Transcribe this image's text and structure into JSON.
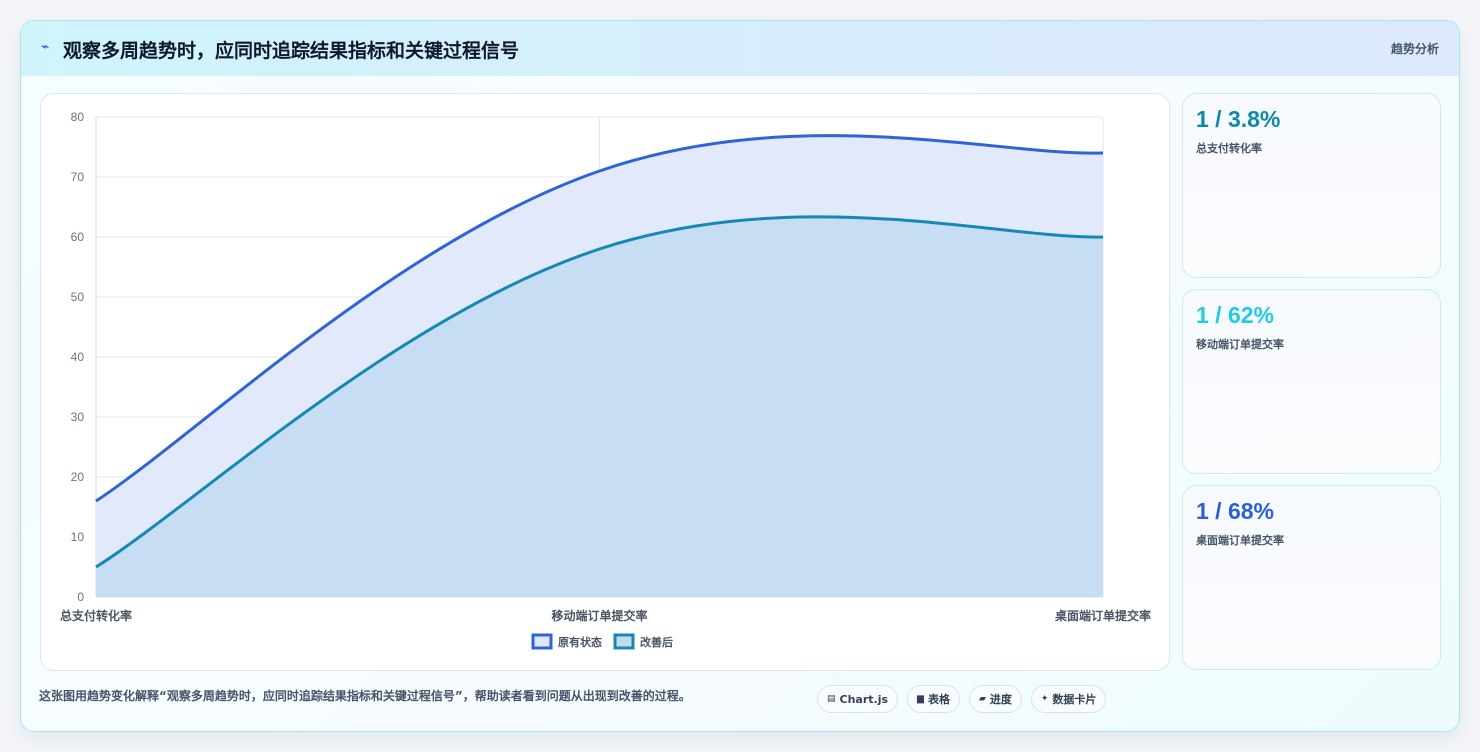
{
  "header": {
    "icon": "trend-line-icon",
    "title": "观察多周趋势时，应同时追踪结果指标和关键过程信号",
    "tag": "趋势分析"
  },
  "chart_data": {
    "type": "area",
    "categories": [
      "总支付转化率",
      "移动端订单提交率",
      "桌面端订单提交率"
    ],
    "series": [
      {
        "name": "原有状态",
        "values": [
          16,
          71,
          74
        ],
        "color": "#2f63d6",
        "fill": "#dfe8fb"
      },
      {
        "name": "改善后",
        "values": [
          5,
          58,
          60
        ],
        "color": "#1589b3",
        "fill": "#c4dcf2"
      }
    ],
    "ylim": [
      0,
      80
    ],
    "yticks": [
      "0",
      "10",
      "20",
      "30",
      "40",
      "50",
      "60",
      "70",
      "80"
    ],
    "grid": true,
    "legend": "bottom"
  },
  "kpis": [
    {
      "value": "1 / 3.8%",
      "label": "总支付转化率",
      "color": "#0e8aa8"
    },
    {
      "value": "1 / 62%",
      "label": "移动端订单提交率",
      "color": "#22cce0"
    },
    {
      "value": "1 / 68%",
      "label": "桌面端订单提交率",
      "color": "#2c5fd6"
    }
  ],
  "caption": "这张图用趋势变化解释“观察多周趋势时，应同时追踪结果指标和关键过程信号”，帮助读者看到问题从出现到改善的过程。",
  "pills": [
    {
      "icon": "chart-icon",
      "glyph": "▤",
      "label": "Chart.js"
    },
    {
      "icon": "table-icon",
      "glyph": "▆",
      "label": "表格"
    },
    {
      "icon": "progress-icon",
      "glyph": "▰",
      "label": "进度"
    },
    {
      "icon": "sparkle-icon",
      "glyph": "✦",
      "label": "数据卡片"
    }
  ]
}
